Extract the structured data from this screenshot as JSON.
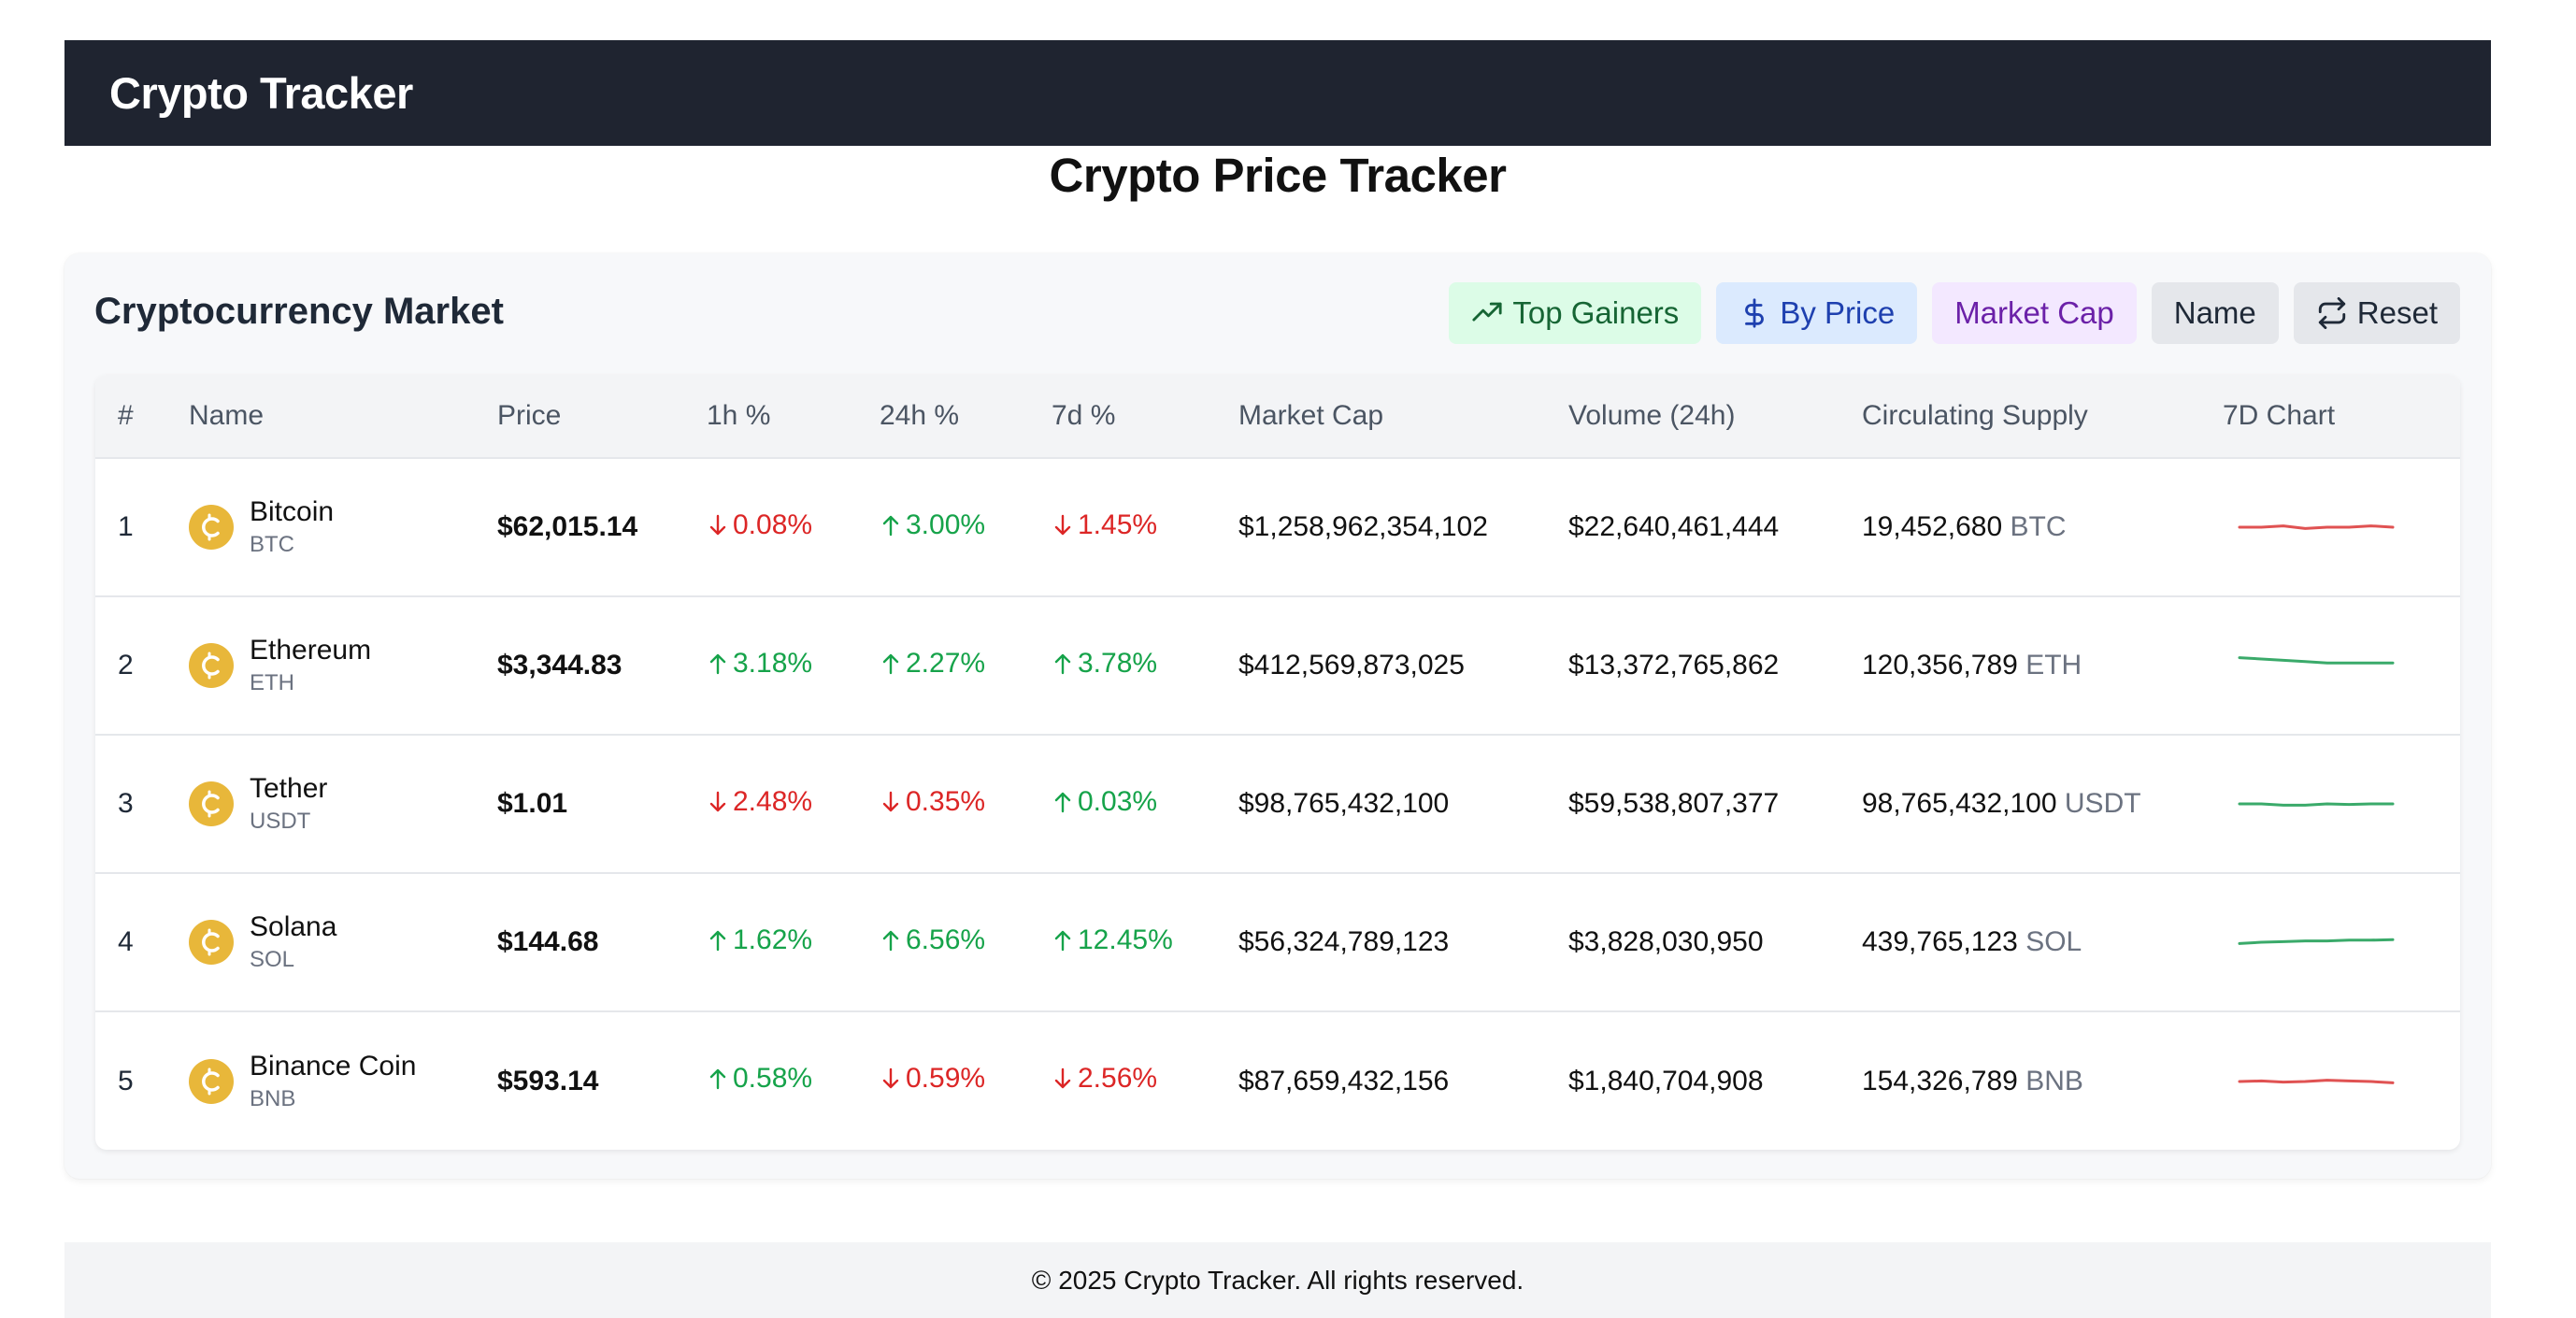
{
  "header": {
    "brand": "Crypto Tracker"
  },
  "page_title": "Crypto Price Tracker",
  "market": {
    "title": "Cryptocurrency Market",
    "filters": {
      "top_gainers": "Top Gainers",
      "by_price": "By Price",
      "market_cap": "Market Cap",
      "name": "Name",
      "reset": "Reset"
    },
    "columns": [
      "#",
      "Name",
      "Price",
      "1h %",
      "24h %",
      "7d %",
      "Market Cap",
      "Volume (24h)",
      "Circulating Supply",
      "7D Chart"
    ],
    "rows": [
      {
        "rank": "1",
        "name": "Bitcoin",
        "symbol": "BTC",
        "price": "$62,015.14",
        "h1": {
          "value": "0.08%",
          "dir": "down"
        },
        "h24": {
          "value": "3.00%",
          "dir": "up"
        },
        "d7": {
          "value": "1.45%",
          "dir": "down"
        },
        "market_cap": "$1,258,962,354,102",
        "volume": "$22,640,461,444",
        "supply": "19,452,680",
        "supply_symbol": "BTC",
        "spark": {
          "color": "#e05252",
          "trend": "down",
          "points": [
            0.5,
            0.5,
            0.45,
            0.55,
            0.5,
            0.5,
            0.45,
            0.5
          ]
        }
      },
      {
        "rank": "2",
        "name": "Ethereum",
        "symbol": "ETH",
        "price": "$3,344.83",
        "h1": {
          "value": "3.18%",
          "dir": "up"
        },
        "h24": {
          "value": "2.27%",
          "dir": "up"
        },
        "d7": {
          "value": "3.78%",
          "dir": "up"
        },
        "market_cap": "$412,569,873,025",
        "volume": "$13,372,765,862",
        "supply": "120,356,789",
        "supply_symbol": "ETH",
        "spark": {
          "color": "#3aaa6a",
          "trend": "up",
          "points": [
            0.2,
            0.25,
            0.3,
            0.35,
            0.4,
            0.4,
            0.4,
            0.4
          ]
        }
      },
      {
        "rank": "3",
        "name": "Tether",
        "symbol": "USDT",
        "price": "$1.01",
        "h1": {
          "value": "2.48%",
          "dir": "down"
        },
        "h24": {
          "value": "0.35%",
          "dir": "down"
        },
        "d7": {
          "value": "0.03%",
          "dir": "up"
        },
        "market_cap": "$98,765,432,100",
        "volume": "$59,538,807,377",
        "supply": "98,765,432,100",
        "supply_symbol": "USDT",
        "spark": {
          "color": "#3aaa6a",
          "trend": "up",
          "points": [
            0.5,
            0.5,
            0.55,
            0.55,
            0.5,
            0.52,
            0.5,
            0.5
          ]
        }
      },
      {
        "rank": "4",
        "name": "Solana",
        "symbol": "SOL",
        "price": "$144.68",
        "h1": {
          "value": "1.62%",
          "dir": "up"
        },
        "h24": {
          "value": "6.56%",
          "dir": "up"
        },
        "d7": {
          "value": "12.45%",
          "dir": "up"
        },
        "market_cap": "$56,324,789,123",
        "volume": "$3,828,030,950",
        "supply": "439,765,123",
        "supply_symbol": "SOL",
        "spark": {
          "color": "#3aaa6a",
          "trend": "up",
          "points": [
            0.55,
            0.5,
            0.48,
            0.45,
            0.45,
            0.42,
            0.42,
            0.4
          ]
        }
      },
      {
        "rank": "5",
        "name": "Binance Coin",
        "symbol": "BNB",
        "price": "$593.14",
        "h1": {
          "value": "0.58%",
          "dir": "up"
        },
        "h24": {
          "value": "0.59%",
          "dir": "down"
        },
        "d7": {
          "value": "2.56%",
          "dir": "down"
        },
        "market_cap": "$87,659,432,156",
        "volume": "$1,840,704,908",
        "supply": "154,326,789",
        "supply_symbol": "BNB",
        "spark": {
          "color": "#e05252",
          "trend": "down",
          "points": [
            0.5,
            0.48,
            0.52,
            0.5,
            0.45,
            0.48,
            0.5,
            0.55
          ]
        }
      }
    ]
  },
  "colors": {
    "up": "#16a34a",
    "down": "#dc2626",
    "coin_icon": "#e8b73a",
    "header_bg": "#1f2430"
  },
  "footer": {
    "text": "© 2025 Crypto Tracker. All rights reserved."
  }
}
